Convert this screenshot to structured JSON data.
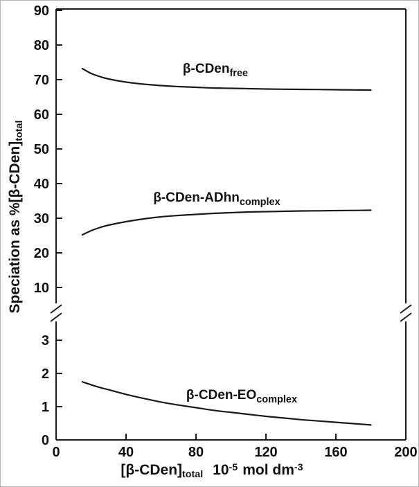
{
  "figure": {
    "background": "#ffffff",
    "line_color": "#1a1a1a"
  },
  "chart_data": {
    "type": "line",
    "title": "",
    "grid": false,
    "legend": "inline-labels",
    "xlabel": {
      "bracket": "[β-CDen]",
      "bracket_sub": "total",
      "factor": "10",
      "factor_exp": "-5",
      "units": "mol dm",
      "units_exp": "-3"
    },
    "ylabel": {
      "text": "Speciation as %[β-CDen]",
      "sub": "total"
    },
    "xlim": [
      0,
      200
    ],
    "x_ticks": [
      0,
      40,
      80,
      120,
      160,
      200
    ],
    "axis_break": {
      "present": true,
      "between": [
        3.6,
        5
      ]
    },
    "upper_axis": {
      "range": [
        5,
        90
      ],
      "ticks": [
        10,
        20,
        30,
        40,
        50,
        60,
        70,
        80,
        90
      ]
    },
    "lower_axis": {
      "range": [
        0,
        3.63
      ],
      "ticks": [
        0,
        1,
        2,
        3
      ]
    },
    "series": [
      {
        "name": "beta-CDen-free",
        "label": {
          "text": "β-CDen",
          "sub": "free"
        },
        "panel": "upper",
        "x": [
          15,
          20,
          25,
          30,
          40,
          50,
          60,
          70,
          80,
          90,
          100,
          110,
          120,
          130,
          140,
          150,
          160,
          170,
          180
        ],
        "y": [
          73.2,
          71.8,
          70.9,
          70.2,
          69.3,
          68.7,
          68.3,
          68.0,
          67.8,
          67.6,
          67.5,
          67.4,
          67.3,
          67.25,
          67.2,
          67.15,
          67.1,
          67.05,
          67.0
        ]
      },
      {
        "name": "beta-CDen-ADhn-complex",
        "label": {
          "text": "β-CDen-ADhn",
          "sub": "complex"
        },
        "panel": "upper",
        "x": [
          15,
          20,
          25,
          30,
          40,
          50,
          60,
          70,
          80,
          90,
          100,
          110,
          120,
          130,
          140,
          150,
          160,
          170,
          180
        ],
        "y": [
          25.2,
          26.4,
          27.3,
          28.0,
          29.0,
          29.8,
          30.4,
          30.8,
          31.1,
          31.4,
          31.6,
          31.8,
          31.9,
          32.0,
          32.1,
          32.15,
          32.2,
          32.25,
          32.3
        ]
      },
      {
        "name": "beta-CDen-EO-complex",
        "label": {
          "text": "β-CDen-EO",
          "sub": "complex"
        },
        "panel": "lower",
        "x": [
          15,
          20,
          25,
          30,
          40,
          50,
          60,
          70,
          80,
          90,
          100,
          110,
          120,
          130,
          140,
          150,
          160,
          170,
          180
        ],
        "y": [
          1.75,
          1.66,
          1.58,
          1.51,
          1.37,
          1.25,
          1.14,
          1.05,
          0.97,
          0.89,
          0.83,
          0.77,
          0.71,
          0.66,
          0.61,
          0.57,
          0.53,
          0.49,
          0.45
        ]
      }
    ]
  }
}
